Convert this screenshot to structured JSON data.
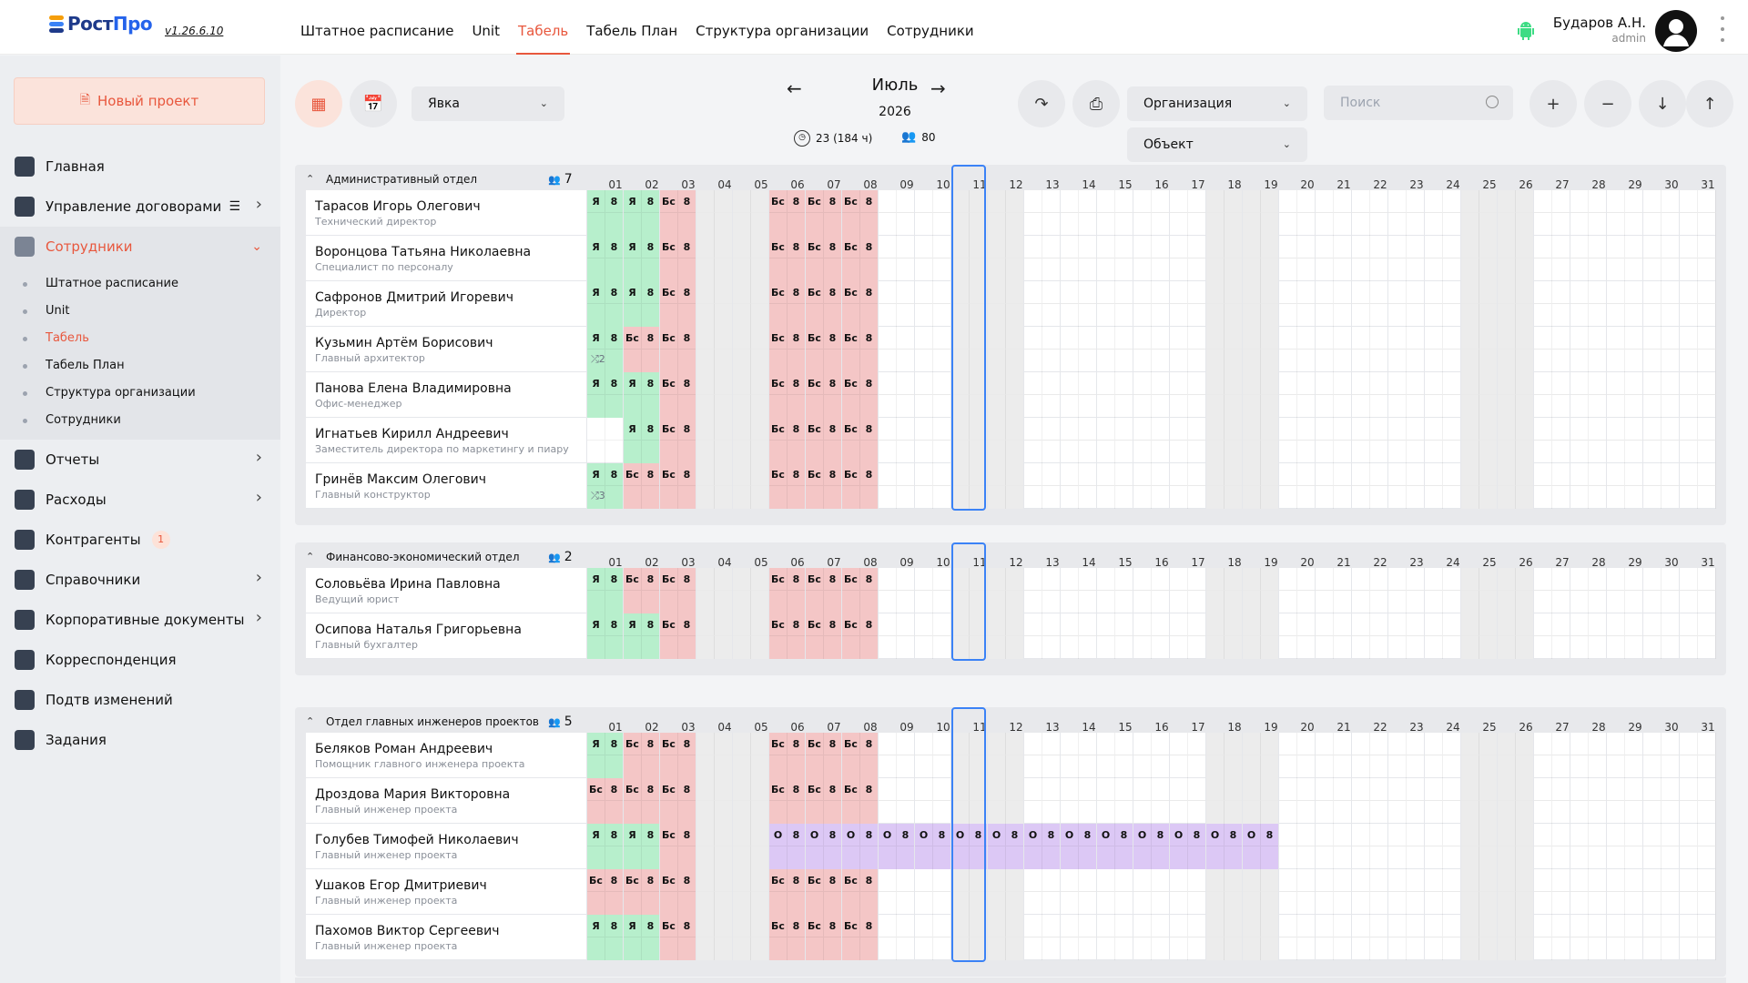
{
  "app": {
    "logo_prefix": "Рост",
    "logo_suffix": "Про",
    "version": "v1.26.6.10"
  },
  "nav": [
    "Штатное расписание",
    "Unit",
    "Табель",
    "Табель План",
    "Структура организации",
    "Сотрудники"
  ],
  "nav_active": 2,
  "user": {
    "name": "Бударов А.Н.",
    "role": "admin"
  },
  "sidebar": {
    "new_project": "Новый проект",
    "items": [
      {
        "label": "Главная",
        "icon": "grid-icon"
      },
      {
        "label": "Управление договорами",
        "icon": "contract-icon",
        "chevron": true,
        "list": true
      },
      {
        "label": "Сотрудники",
        "icon": "people-icon",
        "active": true,
        "expanded": true
      },
      {
        "label": "Отчеты",
        "icon": "report-icon",
        "chevron": true
      },
      {
        "label": "Расходы",
        "icon": "wallet-icon",
        "chevron": true
      },
      {
        "label": "Контрагенты",
        "icon": "briefcase-icon",
        "badge": "1"
      },
      {
        "label": "Справочники",
        "icon": "book-icon",
        "chevron": true
      },
      {
        "label": "Корпоративные документы",
        "icon": "folder-icon",
        "chevron": true
      },
      {
        "label": "Корреспонденция",
        "icon": "mail-icon"
      },
      {
        "label": "Подтв изменений",
        "icon": "alert-icon"
      },
      {
        "label": "Задания",
        "icon": "tasks-icon"
      }
    ],
    "submenu": [
      "Штатное расписание",
      "Unit",
      "Табель",
      "Табель План",
      "Структура организации",
      "Сотрудники"
    ],
    "submenu_active": 2
  },
  "toolbar": {
    "mode": "Явка",
    "month": "Июль",
    "year": "2026",
    "workdays": "23 (184 ч)",
    "people": "80",
    "organization": "Организация",
    "object": "Объект",
    "search_placeholder": "Поиск"
  },
  "days": [
    "01",
    "02",
    "03",
    "04",
    "05",
    "06",
    "07",
    "08",
    "09",
    "10",
    "11",
    "12",
    "13",
    "14",
    "15",
    "16",
    "17",
    "18",
    "19",
    "20",
    "21",
    "22",
    "23",
    "24",
    "25",
    "26",
    "27",
    "28",
    "29",
    "30",
    "31"
  ],
  "weekend_days": [
    4,
    5,
    11,
    12,
    18,
    19,
    25,
    26
  ],
  "today": 11,
  "colors": {
    "accent": "#e8573d",
    "present": "#b7efcc",
    "sick": "#f4c6c6",
    "vacation": "#dcc8f5",
    "today": "#3b82f6"
  },
  "sections": [
    {
      "title": "Административный отдел",
      "count": "7",
      "employees": [
        {
          "name": "Тарасов Игорь Олегович",
          "role": "Технический директор",
          "cells": {
            "1": [
              "Я",
              "8",
              "p"
            ],
            "2": [
              "Я",
              "8",
              "p"
            ],
            "3": [
              "Бс",
              "8",
              "s"
            ],
            "6": [
              "Бс",
              "8",
              "s"
            ],
            "7": [
              "Бс",
              "8",
              "s"
            ],
            "8": [
              "Бс",
              "8",
              "s"
            ]
          }
        },
        {
          "name": "Воронцова Татьяна Николаевна",
          "role": "Специалист по персоналу",
          "cells": {
            "1": [
              "Я",
              "8",
              "p"
            ],
            "2": [
              "Я",
              "8",
              "p"
            ],
            "3": [
              "Бс",
              "8",
              "s"
            ],
            "6": [
              "Бс",
              "8",
              "s"
            ],
            "7": [
              "Бс",
              "8",
              "s"
            ],
            "8": [
              "Бс",
              "8",
              "s"
            ]
          }
        },
        {
          "name": "Сафронов Дмитрий Игоревич",
          "role": "Директор",
          "cells": {
            "1": [
              "Я",
              "8",
              "p"
            ],
            "2": [
              "Я",
              "8",
              "p"
            ],
            "3": [
              "Бс",
              "8",
              "s"
            ],
            "6": [
              "Бс",
              "8",
              "s"
            ],
            "7": [
              "Бс",
              "8",
              "s"
            ],
            "8": [
              "Бс",
              "8",
              "s"
            ]
          }
        },
        {
          "name": "Кузьмин Артём Борисович",
          "role": "Главный архитектор",
          "shuffle": "2",
          "cells": {
            "1": [
              "Я",
              "8",
              "p"
            ],
            "2": [
              "Бс",
              "8",
              "s"
            ],
            "3": [
              "Бс",
              "8",
              "s"
            ],
            "6": [
              "Бс",
              "8",
              "s"
            ],
            "7": [
              "Бс",
              "8",
              "s"
            ],
            "8": [
              "Бс",
              "8",
              "s"
            ]
          }
        },
        {
          "name": "Панова Елена Владимировна",
          "role": "Офис-менеджер",
          "cells": {
            "1": [
              "Я",
              "8",
              "p"
            ],
            "2": [
              "Я",
              "8",
              "p"
            ],
            "3": [
              "Бс",
              "8",
              "s"
            ],
            "6": [
              "Бс",
              "8",
              "s"
            ],
            "7": [
              "Бс",
              "8",
              "s"
            ],
            "8": [
              "Бс",
              "8",
              "s"
            ]
          }
        },
        {
          "name": "Игнатьев Кирилл Андреевич",
          "role": "Заместитель директора по маркетингу и пиару",
          "cells": {
            "1": [
              "",
              "",
              "blank"
            ],
            "2": [
              "Я",
              "8",
              "p"
            ],
            "3": [
              "Бс",
              "8",
              "s"
            ],
            "6": [
              "Бс",
              "8",
              "s"
            ],
            "7": [
              "Бс",
              "8",
              "s"
            ],
            "8": [
              "Бс",
              "8",
              "s"
            ]
          }
        },
        {
          "name": "Гринёв Максим Олегович",
          "role": "Главный конструктор",
          "shuffle": "3",
          "cells": {
            "1": [
              "Я",
              "8",
              "p"
            ],
            "2": [
              "Бс",
              "8",
              "s"
            ],
            "3": [
              "Бс",
              "8",
              "s"
            ],
            "6": [
              "Бс",
              "8",
              "s"
            ],
            "7": [
              "Бс",
              "8",
              "s"
            ],
            "8": [
              "Бс",
              "8",
              "s"
            ]
          }
        }
      ]
    },
    {
      "title": "Финансово-экономический отдел",
      "count": "2",
      "employees": [
        {
          "name": "Соловьёва Ирина Павловна",
          "role": "Ведущий юрист",
          "cells": {
            "1": [
              "Я",
              "8",
              "p"
            ],
            "2": [
              "Бс",
              "8",
              "s"
            ],
            "3": [
              "Бс",
              "8",
              "s"
            ],
            "6": [
              "Бс",
              "8",
              "s"
            ],
            "7": [
              "Бс",
              "8",
              "s"
            ],
            "8": [
              "Бс",
              "8",
              "s"
            ]
          }
        },
        {
          "name": "Осипова Наталья Григорьевна",
          "role": "Главный бухгалтер",
          "cells": {
            "1": [
              "Я",
              "8",
              "p"
            ],
            "2": [
              "Я",
              "8",
              "p"
            ],
            "3": [
              "Бс",
              "8",
              "s"
            ],
            "6": [
              "Бс",
              "8",
              "s"
            ],
            "7": [
              "Бс",
              "8",
              "s"
            ],
            "8": [
              "Бс",
              "8",
              "s"
            ]
          }
        }
      ]
    },
    {
      "title": "Отдел главных инженеров проектов",
      "count": "5",
      "employees": [
        {
          "name": "Беляков Роман Андреевич",
          "role": "Помощник главного инженера проекта",
          "cells": {
            "1": [
              "Я",
              "8",
              "p"
            ],
            "2": [
              "Бс",
              "8",
              "s"
            ],
            "3": [
              "Бс",
              "8",
              "s"
            ],
            "6": [
              "Бс",
              "8",
              "s"
            ],
            "7": [
              "Бс",
              "8",
              "s"
            ],
            "8": [
              "Бс",
              "8",
              "s"
            ]
          }
        },
        {
          "name": "Дроздова Мария Викторовна",
          "role": "Главный инженер проекта",
          "cells": {
            "1": [
              "Бс",
              "8",
              "s"
            ],
            "2": [
              "Бс",
              "8",
              "s"
            ],
            "3": [
              "Бс",
              "8",
              "s"
            ],
            "6": [
              "Бс",
              "8",
              "s"
            ],
            "7": [
              "Бс",
              "8",
              "s"
            ],
            "8": [
              "Бс",
              "8",
              "s"
            ]
          }
        },
        {
          "name": "Голубев Тимофей Николаевич",
          "role": "Главный инженер проекта",
          "cells": {
            "1": [
              "Я",
              "8",
              "p"
            ],
            "2": [
              "Я",
              "8",
              "p"
            ],
            "3": [
              "Бс",
              "8",
              "s"
            ],
            "6": [
              "О",
              "8",
              "v"
            ],
            "7": [
              "О",
              "8",
              "v"
            ],
            "8": [
              "О",
              "8",
              "v"
            ],
            "9": [
              "О",
              "8",
              "v"
            ],
            "10": [
              "О",
              "8",
              "v"
            ],
            "11": [
              "О",
              "8",
              "v"
            ],
            "12": [
              "О",
              "8",
              "v"
            ],
            "13": [
              "О",
              "8",
              "v"
            ],
            "14": [
              "О",
              "8",
              "v"
            ],
            "15": [
              "О",
              "8",
              "v"
            ],
            "16": [
              "О",
              "8",
              "v"
            ],
            "17": [
              "О",
              "8",
              "v"
            ],
            "18": [
              "О",
              "8",
              "v"
            ],
            "19": [
              "О",
              "8",
              "v"
            ]
          }
        },
        {
          "name": "Ушаков Егор Дмитриевич",
          "role": "Главный инженер проекта",
          "cells": {
            "1": [
              "Бс",
              "8",
              "s"
            ],
            "2": [
              "Бс",
              "8",
              "s"
            ],
            "3": [
              "Бс",
              "8",
              "s"
            ],
            "6": [
              "Бс",
              "8",
              "s"
            ],
            "7": [
              "Бс",
              "8",
              "s"
            ],
            "8": [
              "Бс",
              "8",
              "s"
            ]
          }
        },
        {
          "name": "Пахомов Виктор Сергеевич",
          "role": "Главный инженер проекта",
          "cells": {
            "1": [
              "Я",
              "8",
              "p"
            ],
            "2": [
              "Я",
              "8",
              "p"
            ],
            "3": [
              "Бс",
              "8",
              "s"
            ],
            "6": [
              "Бс",
              "8",
              "s"
            ],
            "7": [
              "Бс",
              "8",
              "s"
            ],
            "8": [
              "Бс",
              "8",
              "s"
            ]
          }
        }
      ]
    }
  ]
}
